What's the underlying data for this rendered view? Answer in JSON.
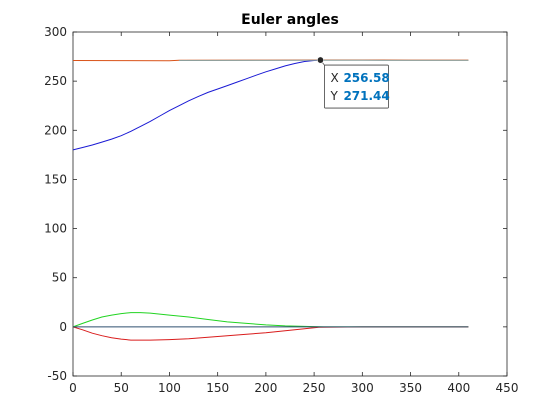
{
  "chart_data": {
    "type": "line",
    "title": "Euler angles",
    "xlabel": "",
    "ylabel": "",
    "xlim": [
      0,
      450
    ],
    "ylim": [
      -50,
      300
    ],
    "xticks": [
      0,
      50,
      100,
      150,
      200,
      250,
      300,
      350,
      400,
      450
    ],
    "yticks": [
      -50,
      0,
      50,
      100,
      150,
      200,
      250,
      300
    ],
    "grid": false,
    "legend": "none",
    "series": [
      {
        "color": "#1a1ad4",
        "x": [
          0,
          10,
          20,
          30,
          40,
          50,
          60,
          70,
          80,
          90,
          100,
          110,
          120,
          130,
          140,
          150,
          160,
          170,
          180,
          190,
          200,
          210,
          220,
          230,
          240,
          250,
          256.58
        ],
        "y": [
          180,
          182.5,
          185,
          188,
          191,
          194.5,
          199,
          204,
          209,
          214.5,
          220,
          225,
          230,
          234.5,
          238.5,
          242,
          245.5,
          249,
          252.5,
          256,
          259.5,
          262.5,
          265.5,
          268,
          270,
          271,
          271.44
        ]
      },
      {
        "color": "#d95319",
        "x": [
          0,
          50,
          100,
          110,
          200,
          250,
          300,
          350,
          410
        ],
        "y": [
          271,
          270.9,
          270.8,
          271.3,
          271.4,
          271.5,
          271.5,
          271.4,
          271.4
        ]
      },
      {
        "color": "#8c9f9c",
        "x": [
          110,
          200,
          256.58,
          300,
          400,
          410
        ],
        "y": [
          271.0,
          271.1,
          271.2,
          271.2,
          271.1,
          271.1
        ]
      },
      {
        "color": "#22d422",
        "x": [
          0,
          10,
          20,
          30,
          40,
          50,
          60,
          70,
          80,
          90,
          100,
          120,
          140,
          160,
          180,
          200,
          220,
          240,
          260,
          300,
          350,
          410
        ],
        "y": [
          0,
          3.5,
          7,
          10,
          12,
          13.5,
          14.5,
          14.5,
          14,
          13,
          12,
          10,
          7.5,
          5,
          3.5,
          2,
          1,
          0.5,
          0,
          0,
          0,
          0
        ]
      },
      {
        "color": "#d91c1c",
        "x": [
          0,
          10,
          20,
          30,
          40,
          50,
          60,
          70,
          80,
          100,
          120,
          140,
          160,
          180,
          200,
          220,
          240,
          255,
          300,
          350,
          410
        ],
        "y": [
          0,
          -3,
          -6.5,
          -9,
          -11,
          -12.5,
          -13.5,
          -13.5,
          -13.5,
          -13,
          -12,
          -10.5,
          -9,
          -7.5,
          -6,
          -4,
          -2,
          -0.5,
          0,
          0,
          0
        ]
      },
      {
        "color": "#2f4f6f",
        "x": [
          0,
          100,
          200,
          300,
          410
        ],
        "y": [
          0,
          0,
          0,
          0,
          0
        ]
      }
    ],
    "datatip": {
      "x_label": "X",
      "y_label": "Y",
      "x_value": "256.58",
      "y_value": "271.44",
      "point": [
        256.58,
        271.44
      ],
      "value_color": "#0072bd"
    }
  }
}
